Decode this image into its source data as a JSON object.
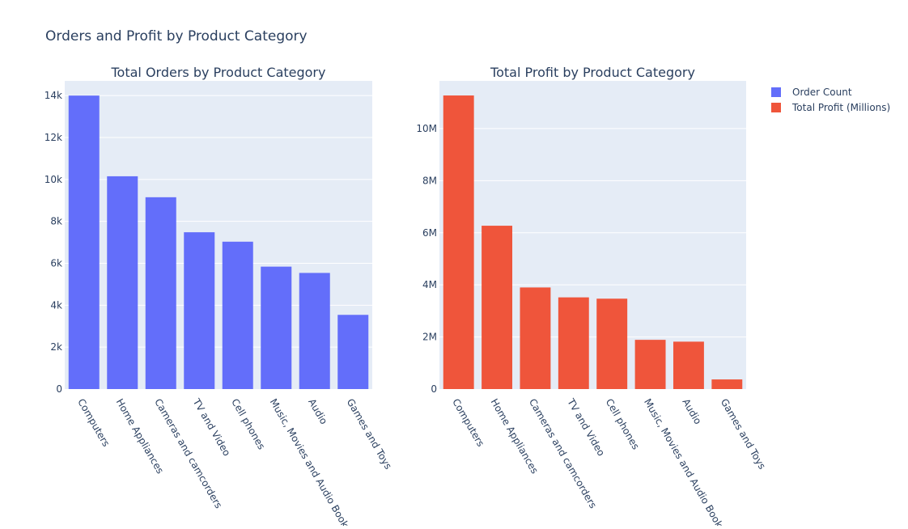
{
  "page": {
    "title": "Orders and Profit by Product Category"
  },
  "chart_data": [
    {
      "type": "bar",
      "title": "Total Orders by Product Category",
      "xlabel": "",
      "ylabel": "",
      "categories": [
        "Computers",
        "Home Appliances",
        "Cameras and camcorders",
        "TV and Video",
        "Cell phones",
        "Music, Movies and Audio Books",
        "Audio",
        "Games and Toys"
      ],
      "series": [
        {
          "name": "Order Count",
          "color": "#636efa",
          "values": [
            14000,
            10150,
            9150,
            7480,
            7030,
            5840,
            5540,
            3540
          ]
        }
      ],
      "ylim": [
        0,
        14700
      ],
      "yticks": [
        0,
        2000,
        4000,
        6000,
        8000,
        10000,
        12000,
        14000
      ],
      "ytick_labels": [
        "0",
        "2k",
        "4k",
        "6k",
        "8k",
        "10k",
        "12k",
        "14k"
      ],
      "grid": true
    },
    {
      "type": "bar",
      "title": "Total Profit by Product Category",
      "xlabel": "",
      "ylabel": "",
      "categories": [
        "Computers",
        "Home Appliances",
        "Cameras and camcorders",
        "TV and Video",
        "Cell phones",
        "Music, Movies and Audio Books",
        "Audio",
        "Games and Toys"
      ],
      "series": [
        {
          "name": "Total Profit (Millions)",
          "color": "#ef553b",
          "values": [
            11270000,
            6270000,
            3900000,
            3520000,
            3470000,
            1890000,
            1820000,
            370000
          ]
        }
      ],
      "ylim": [
        0,
        11830000
      ],
      "yticks": [
        0,
        2000000,
        4000000,
        6000000,
        8000000,
        10000000
      ],
      "ytick_labels": [
        "0",
        "2M",
        "4M",
        "6M",
        "8M",
        "10M"
      ],
      "grid": true
    }
  ],
  "legend": {
    "placement": "top-right",
    "items": [
      {
        "label": "Order Count",
        "color": "#636efa"
      },
      {
        "label": "Total Profit (Millions)",
        "color": "#ef553b"
      }
    ]
  },
  "style": {
    "plot_bg": "#e5ecf6",
    "grid_color": "#ffffff",
    "text_color": "#2a3f5f"
  }
}
